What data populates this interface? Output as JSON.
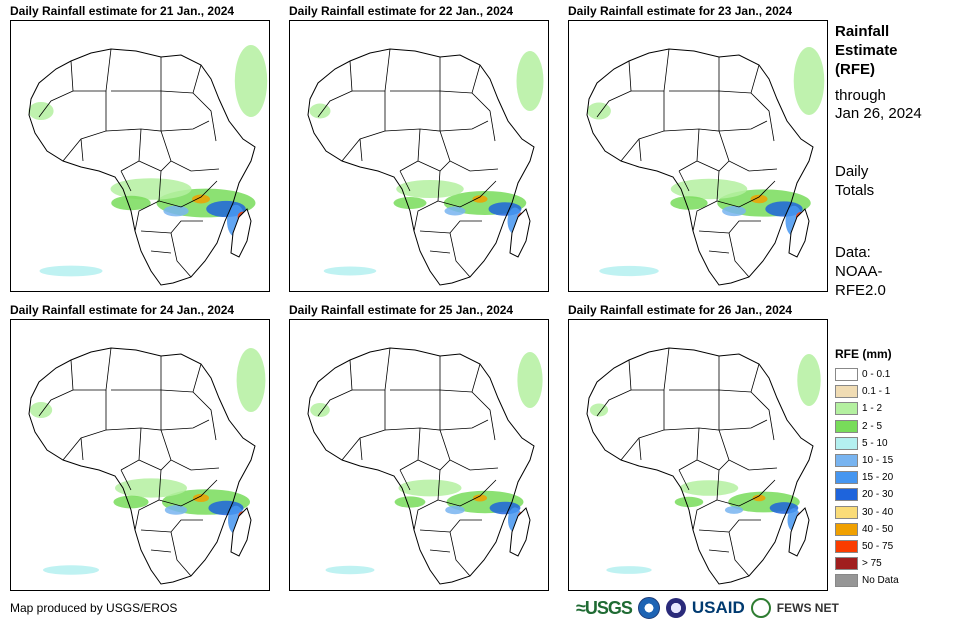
{
  "panels": [
    {
      "title": "Daily Rainfall estimate for 21 Jan., 2024",
      "intensity": 0.9
    },
    {
      "title": "Daily Rainfall estimate for 22 Jan., 2024",
      "intensity": 0.75
    },
    {
      "title": "Daily Rainfall estimate for 23 Jan., 2024",
      "intensity": 0.85
    },
    {
      "title": "Daily Rainfall estimate for 24 Jan., 2024",
      "intensity": 0.8
    },
    {
      "title": "Daily Rainfall estimate for 25 Jan., 2024",
      "intensity": 0.7
    },
    {
      "title": "Daily Rainfall estimate for 26 Jan., 2024",
      "intensity": 0.65
    }
  ],
  "side": {
    "title_line1": "Rainfall",
    "title_line2": "Estimate",
    "title_line3": "(RFE)",
    "through": "through",
    "date": "Jan 26, 2024",
    "daily": "Daily",
    "totals": "Totals",
    "data_label": "Data:",
    "source1": "NOAA-",
    "source2": "RFE2.0"
  },
  "legend": {
    "title": "RFE (mm)",
    "items": [
      {
        "label": "0 - 0.1",
        "color": "#ffffff"
      },
      {
        "label": "0.1 - 1",
        "color": "#f0dcb4"
      },
      {
        "label": "1 - 2",
        "color": "#b4f0a0"
      },
      {
        "label": "2 - 5",
        "color": "#78dc5a"
      },
      {
        "label": "5 - 10",
        "color": "#b4f0f0"
      },
      {
        "label": "10 - 15",
        "color": "#78b4f0"
      },
      {
        "label": "15 - 20",
        "color": "#4696f0"
      },
      {
        "label": "20 - 30",
        "color": "#1e64dc"
      },
      {
        "label": "30 - 40",
        "color": "#fadc78"
      },
      {
        "label": "40 - 50",
        "color": "#f0a000"
      },
      {
        "label": "50 - 75",
        "color": "#fa3c00"
      },
      {
        "label": "> 75",
        "color": "#a01e1e"
      },
      {
        "label": "No Data",
        "color": "#969696"
      }
    ]
  },
  "footer": {
    "credit": "Map produced by USGS/EROS",
    "logo_usgs": "≈USGS",
    "logo_usaid": "USAID",
    "logo_fews": "FEWS NET"
  }
}
